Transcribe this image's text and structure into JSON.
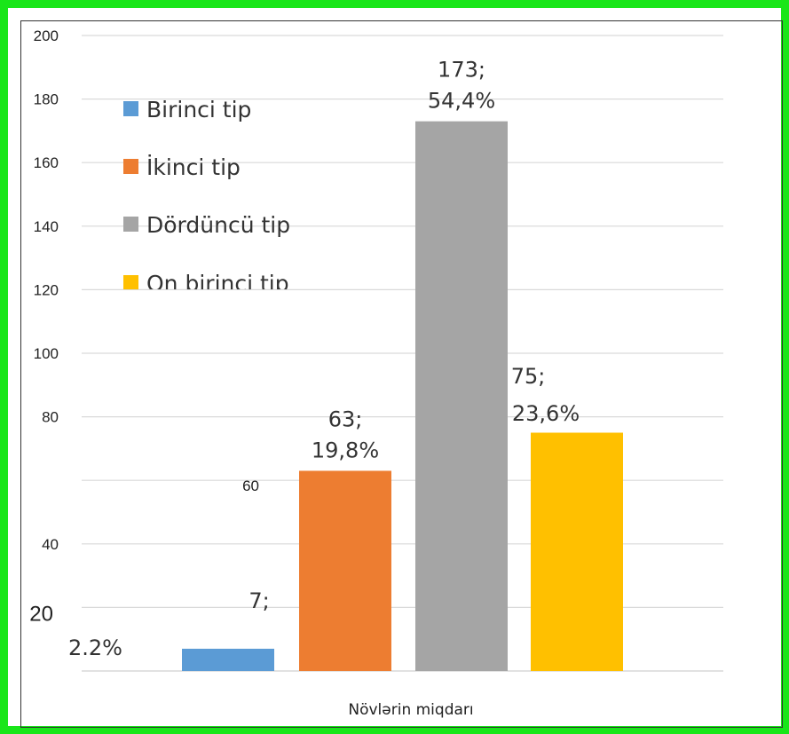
{
  "chart_data": {
    "type": "bar",
    "xlabel": "Növlərin miqdarı",
    "ylabel": "",
    "ylim": [
      0,
      200
    ],
    "yticks": [
      20,
      40,
      60,
      80,
      100,
      120,
      140,
      160,
      180,
      200
    ],
    "grid": true,
    "legend_position": "top-left",
    "series": [
      {
        "name": "Birinci tip",
        "value": 7,
        "label": "7;",
        "percent": "2.2%",
        "color": "#5b9bd5"
      },
      {
        "name": "İkinci tip",
        "value": 63,
        "label": "63;",
        "percent": "19,8%",
        "color": "#ed7d31"
      },
      {
        "name": "Dördüncü tip",
        "value": 173,
        "label": "173;",
        "percent": "54,4%",
        "color": "#a5a5a5"
      },
      {
        "name": "On birinci tip",
        "value": 75,
        "label": "75;",
        "percent": "23,6%",
        "color": "#ffc000"
      }
    ]
  }
}
